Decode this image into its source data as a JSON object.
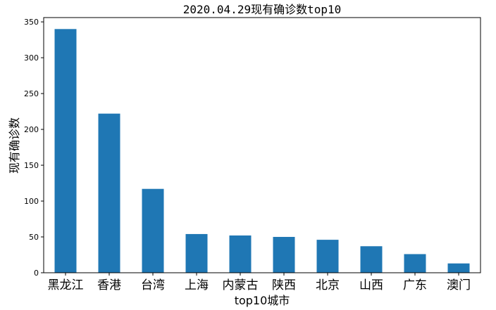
{
  "chart_data": {
    "type": "bar",
    "title": "2020.04.29现有确诊数top10",
    "xlabel": "top10城市",
    "ylabel": "现有确诊数",
    "categories": [
      "黑龙江",
      "香港",
      "台湾",
      "上海",
      "内蒙古",
      "陕西",
      "北京",
      "山西",
      "广东",
      "澳门"
    ],
    "values": [
      340,
      222,
      117,
      54,
      52,
      50,
      46,
      37,
      26,
      13
    ],
    "ylim": [
      0,
      356
    ],
    "yticks": [
      0,
      50,
      100,
      150,
      200,
      250,
      300,
      350
    ],
    "bar_color": "#1f77b4",
    "grid": false
  }
}
